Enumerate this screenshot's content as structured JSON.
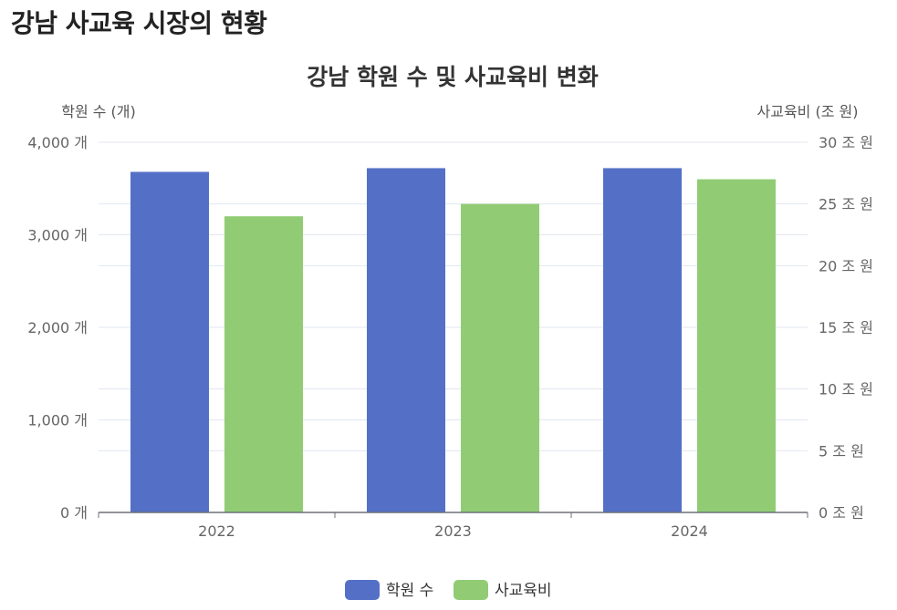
{
  "page": {
    "heading": "강남 사교육 시장의 현황"
  },
  "chart_data": {
    "type": "bar",
    "title": "강남 학원 수 및 사교육비 변화",
    "categories": [
      "2022",
      "2023",
      "2024"
    ],
    "y_left": {
      "name": "학원 수 (개)",
      "min": 0,
      "max": 4000,
      "interval": 1000,
      "unit_suffix": " 개",
      "tick_labels": [
        "0 개",
        "1,000 개",
        "2,000 개",
        "3,000 개",
        "4,000 개"
      ]
    },
    "y_right": {
      "name": "사교육비 (조 원)",
      "min": 0,
      "max": 30,
      "interval": 5,
      "unit_suffix": " 조 원",
      "tick_labels": [
        "0 조 원",
        "5 조 원",
        "10 조 원",
        "15 조 원",
        "20 조 원",
        "25 조 원",
        "30 조 원"
      ]
    },
    "series": [
      {
        "name": "학원 수",
        "axis": "left",
        "color": "#5470c6",
        "values": [
          3680,
          3720,
          3720
        ]
      },
      {
        "name": "사교육비",
        "axis": "right",
        "color": "#91cc75",
        "values": [
          24,
          25,
          27
        ]
      }
    ],
    "legend_position": "bottom-center",
    "grid": true
  }
}
